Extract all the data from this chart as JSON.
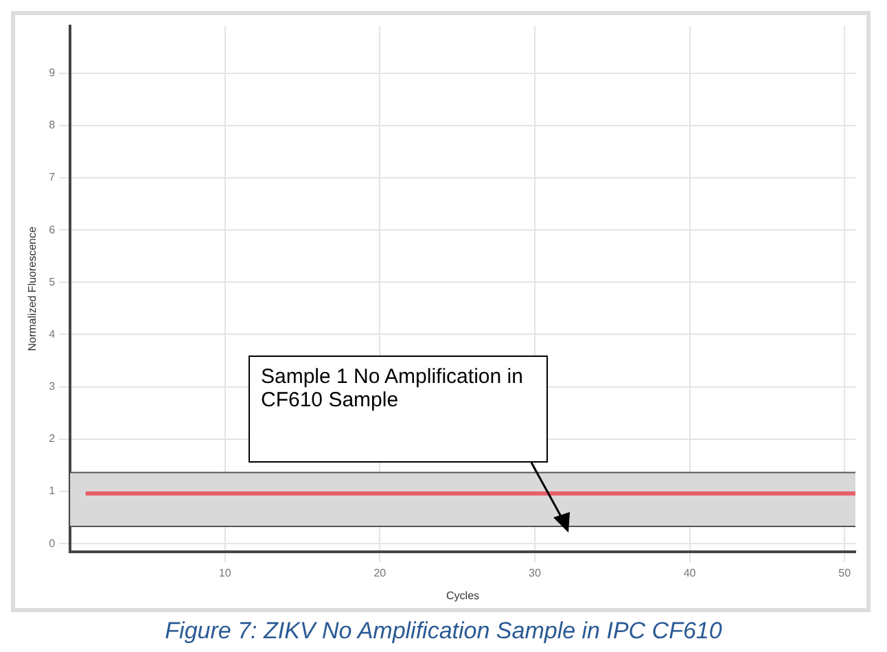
{
  "chart_data": {
    "type": "line",
    "title": "Figure 7: ZIKV No Amplification Sample in IPC CF610",
    "xlabel": "Cycles",
    "ylabel": "Normalized Fluorescence",
    "x": [
      1,
      50.7
    ],
    "series": [
      {
        "color": "#e8606a",
        "values": [
          0.96,
          0.96
        ]
      }
    ],
    "bands": [
      {
        "axis": "y",
        "from": 0.33,
        "to": 1.36,
        "color": "#d9d9d9"
      }
    ],
    "ref_lines": [
      {
        "axis": "y",
        "value": 0.33,
        "color": "#555555"
      },
      {
        "axis": "y",
        "value": 1.36,
        "color": "#555555"
      }
    ],
    "annotations": [
      "Sample 1 No Amplification in CF610 Sample"
    ],
    "xlim": [
      0,
      50.7
    ],
    "xticks": [
      10,
      20,
      30,
      40,
      50
    ],
    "ylim": [
      -0.15,
      9.9
    ],
    "yticks": [
      0,
      1,
      2,
      3,
      4,
      5,
      6,
      7,
      8,
      9
    ],
    "grid": true,
    "legend": false,
    "marker": "none",
    "line_style": "solid"
  }
}
